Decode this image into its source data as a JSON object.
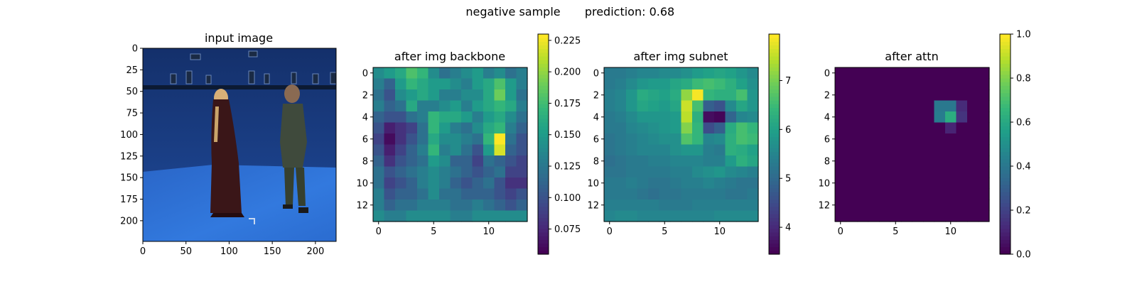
{
  "figure": {
    "title_left": "negative sample",
    "title_right": "prediction: 0.68"
  },
  "chart_data": [
    {
      "type": "image",
      "title": "input image",
      "xticks": [
        0,
        50,
        100,
        150,
        200
      ],
      "yticks": [
        0,
        25,
        50,
        75,
        100,
        125,
        150,
        175,
        200
      ],
      "xlim": [
        0,
        224
      ],
      "ylim": [
        0,
        224
      ],
      "scene": {
        "wall_color": "#1b3f86",
        "floor_color": "#2c6ed3",
        "rig_color": "#0c1a33",
        "person_left": "woman in long dark red robe",
        "person_right": "man in dark grey-green suit"
      }
    },
    {
      "type": "heatmap",
      "title": "after img backbone",
      "xticks": [
        0,
        5,
        10
      ],
      "yticks": [
        0,
        2,
        4,
        6,
        8,
        10,
        12
      ],
      "colorbar": {
        "min": 0.055,
        "max": 0.23,
        "ticks": [
          "0.075",
          "0.100",
          "0.125",
          "0.150",
          "0.175",
          "0.200",
          "0.225"
        ]
      },
      "colormap": "viridis",
      "values": [
        [
          0.14,
          0.15,
          0.16,
          0.18,
          0.17,
          0.14,
          0.12,
          0.13,
          0.14,
          0.15,
          0.13,
          0.14,
          0.12,
          0.13
        ],
        [
          0.13,
          0.11,
          0.15,
          0.17,
          0.16,
          0.15,
          0.15,
          0.14,
          0.13,
          0.15,
          0.16,
          0.18,
          0.15,
          0.13
        ],
        [
          0.12,
          0.1,
          0.14,
          0.15,
          0.16,
          0.15,
          0.13,
          0.13,
          0.14,
          0.14,
          0.16,
          0.19,
          0.15,
          0.12
        ],
        [
          0.13,
          0.11,
          0.12,
          0.16,
          0.13,
          0.13,
          0.14,
          0.15,
          0.13,
          0.15,
          0.16,
          0.17,
          0.16,
          0.13
        ],
        [
          0.11,
          0.1,
          0.1,
          0.12,
          0.13,
          0.17,
          0.16,
          0.16,
          0.15,
          0.13,
          0.15,
          0.16,
          0.14,
          0.12
        ],
        [
          0.1,
          0.07,
          0.08,
          0.09,
          0.12,
          0.17,
          0.15,
          0.13,
          0.12,
          0.14,
          0.16,
          0.17,
          0.13,
          0.11
        ],
        [
          0.09,
          0.06,
          0.08,
          0.1,
          0.12,
          0.16,
          0.14,
          0.14,
          0.13,
          0.12,
          0.17,
          0.23,
          0.12,
          0.1
        ],
        [
          0.1,
          0.07,
          0.09,
          0.11,
          0.13,
          0.17,
          0.13,
          0.14,
          0.12,
          0.1,
          0.15,
          0.22,
          0.11,
          0.1
        ],
        [
          0.11,
          0.08,
          0.1,
          0.11,
          0.12,
          0.15,
          0.14,
          0.11,
          0.11,
          0.09,
          0.12,
          0.11,
          0.1,
          0.09
        ],
        [
          0.12,
          0.1,
          0.11,
          0.12,
          0.13,
          0.14,
          0.13,
          0.12,
          0.11,
          0.1,
          0.11,
          0.12,
          0.09,
          0.09
        ],
        [
          0.12,
          0.09,
          0.1,
          0.11,
          0.13,
          0.14,
          0.13,
          0.11,
          0.1,
          0.11,
          0.12,
          0.1,
          0.08,
          0.08
        ],
        [
          0.13,
          0.1,
          0.11,
          0.11,
          0.12,
          0.14,
          0.12,
          0.12,
          0.11,
          0.11,
          0.11,
          0.1,
          0.09,
          0.1
        ],
        [
          0.13,
          0.11,
          0.12,
          0.12,
          0.13,
          0.13,
          0.13,
          0.12,
          0.12,
          0.13,
          0.12,
          0.11,
          0.1,
          0.11
        ],
        [
          0.14,
          0.13,
          0.13,
          0.14,
          0.14,
          0.14,
          0.14,
          0.13,
          0.13,
          0.14,
          0.14,
          0.14,
          0.14,
          0.14
        ]
      ]
    },
    {
      "type": "heatmap",
      "title": "after img subnet",
      "xticks": [
        0,
        5,
        10
      ],
      "yticks": [
        0,
        2,
        4,
        6,
        8,
        10,
        12
      ],
      "colorbar": {
        "min": 3.45,
        "max": 7.95,
        "ticks": [
          "4",
          "5",
          "6",
          "7"
        ]
      },
      "colormap": "viridis",
      "values": [
        [
          5.3,
          5.3,
          5.4,
          5.5,
          5.5,
          5.6,
          5.6,
          5.7,
          5.9,
          6.0,
          6.1,
          6.0,
          5.8,
          5.6
        ],
        [
          5.3,
          5.4,
          5.6,
          5.8,
          5.9,
          5.9,
          6.1,
          6.2,
          6.5,
          6.6,
          6.5,
          6.3,
          6.0,
          5.7
        ],
        [
          5.4,
          5.5,
          5.8,
          6.2,
          6.1,
          6.0,
          6.2,
          7.2,
          7.9,
          6.4,
          6.3,
          6.3,
          6.6,
          5.8
        ],
        [
          5.4,
          5.5,
          5.8,
          6.1,
          6.0,
          5.9,
          6.1,
          7.6,
          6.6,
          4.8,
          4.6,
          5.6,
          6.1,
          5.8
        ],
        [
          5.3,
          5.4,
          5.6,
          5.8,
          5.8,
          5.8,
          5.9,
          7.5,
          6.3,
          3.6,
          3.5,
          4.9,
          5.5,
          5.6
        ],
        [
          5.3,
          5.3,
          5.5,
          5.6,
          5.7,
          5.8,
          5.9,
          7.1,
          6.4,
          4.5,
          4.8,
          6.2,
          6.6,
          6.4
        ],
        [
          5.2,
          5.3,
          5.4,
          5.5,
          5.6,
          5.7,
          5.7,
          6.7,
          6.4,
          5.5,
          5.6,
          6.3,
          6.6,
          6.5
        ],
        [
          5.2,
          5.3,
          5.4,
          5.5,
          5.5,
          5.5,
          5.7,
          5.8,
          5.8,
          5.4,
          5.3,
          6.3,
          6.2,
          6.0
        ],
        [
          5.1,
          5.2,
          5.3,
          5.3,
          5.4,
          5.4,
          5.5,
          5.5,
          5.5,
          5.4,
          5.4,
          5.9,
          6.3,
          6.1
        ],
        [
          5.2,
          5.2,
          5.3,
          5.3,
          5.3,
          5.3,
          5.4,
          5.4,
          5.6,
          5.7,
          5.8,
          5.6,
          5.5,
          5.4
        ],
        [
          5.3,
          5.3,
          5.4,
          5.3,
          5.2,
          5.2,
          5.3,
          5.4,
          5.4,
          5.5,
          5.4,
          5.3,
          5.2,
          5.2
        ],
        [
          5.3,
          5.3,
          5.3,
          5.2,
          5.1,
          5.2,
          5.2,
          5.3,
          5.3,
          5.3,
          5.3,
          5.2,
          5.2,
          5.3
        ],
        [
          5.4,
          5.4,
          5.4,
          5.4,
          5.4,
          5.3,
          5.3,
          5.3,
          5.4,
          5.4,
          5.4,
          5.4,
          5.4,
          5.4
        ],
        [
          5.5,
          5.6,
          5.6,
          5.5,
          5.5,
          5.5,
          5.5,
          5.5,
          5.5,
          5.5,
          5.6,
          5.6,
          5.6,
          5.6
        ]
      ]
    },
    {
      "type": "heatmap",
      "title": "after attn",
      "xticks": [
        0,
        5,
        10
      ],
      "yticks": [
        0,
        2,
        4,
        6,
        8,
        10,
        12
      ],
      "colorbar": {
        "min": 0,
        "max": 1,
        "ticks": [
          "0.0",
          "0.2",
          "0.4",
          "0.6",
          "0.8",
          "1.0"
        ]
      },
      "colormap": "viridis",
      "values": [
        [
          0,
          0,
          0,
          0,
          0,
          0,
          0,
          0,
          0,
          0,
          0,
          0,
          0,
          0
        ],
        [
          0,
          0,
          0,
          0,
          0,
          0,
          0,
          0,
          0,
          0,
          0,
          0,
          0,
          0
        ],
        [
          0,
          0,
          0,
          0,
          0,
          0,
          0,
          0,
          0,
          0,
          0,
          0,
          0,
          0
        ],
        [
          0,
          0,
          0,
          0,
          0,
          0,
          0,
          0,
          0,
          0.4,
          0.4,
          0.12,
          0,
          0
        ],
        [
          0,
          0,
          0,
          0,
          0,
          0,
          0,
          0,
          0,
          0.42,
          0.62,
          0.15,
          0,
          0
        ],
        [
          0,
          0,
          0,
          0,
          0,
          0,
          0,
          0,
          0,
          0,
          0.1,
          0,
          0,
          0
        ],
        [
          0,
          0,
          0,
          0,
          0,
          0,
          0,
          0,
          0,
          0,
          0,
          0,
          0,
          0
        ],
        [
          0,
          0,
          0,
          0,
          0,
          0,
          0,
          0,
          0,
          0,
          0,
          0,
          0,
          0
        ],
        [
          0,
          0,
          0,
          0,
          0,
          0,
          0,
          0,
          0,
          0,
          0,
          0,
          0,
          0
        ],
        [
          0,
          0,
          0,
          0,
          0,
          0,
          0,
          0,
          0,
          0,
          0,
          0,
          0,
          0
        ],
        [
          0,
          0,
          0,
          0,
          0,
          0,
          0,
          0,
          0,
          0,
          0,
          0,
          0,
          0
        ],
        [
          0,
          0,
          0,
          0,
          0,
          0,
          0,
          0,
          0,
          0,
          0,
          0,
          0,
          0
        ],
        [
          0,
          0,
          0,
          0,
          0,
          0,
          0,
          0,
          0,
          0,
          0,
          0,
          0,
          0
        ],
        [
          0,
          0,
          0,
          0,
          0,
          0,
          0,
          0,
          0,
          0,
          0,
          0,
          0,
          0
        ]
      ]
    }
  ]
}
